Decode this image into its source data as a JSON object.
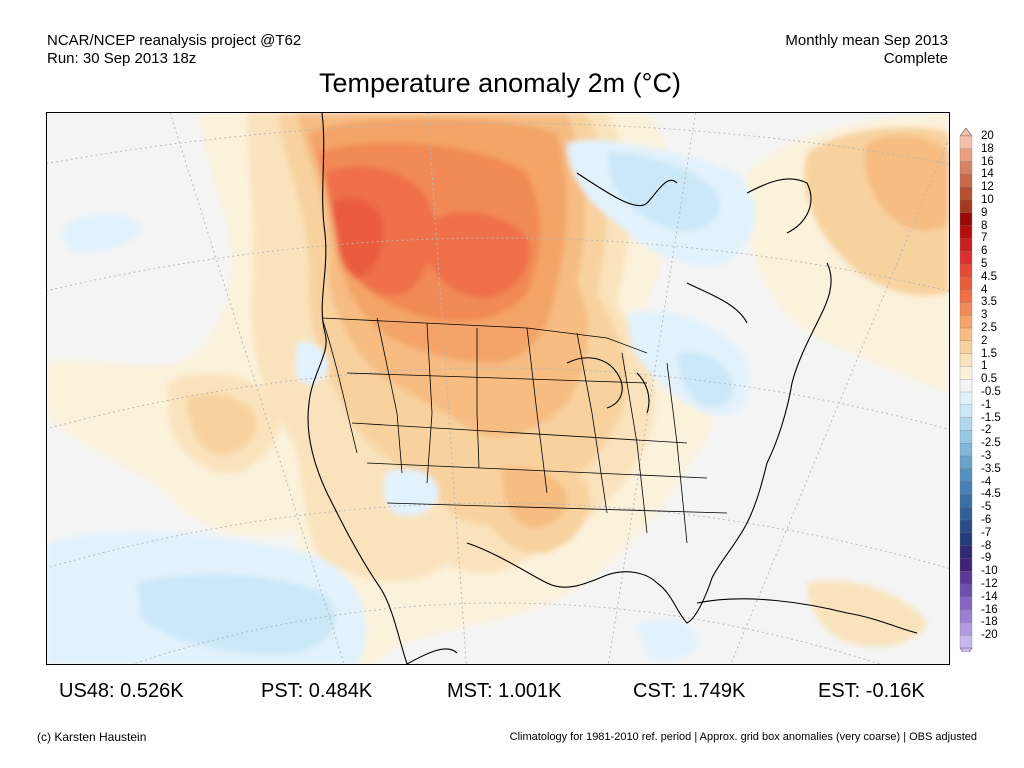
{
  "header": {
    "left_line1": "NCAR/NCEP reanalysis project @T62",
    "left_line2": "Run: 30 Sep 2013 18z",
    "right_line1": "Monthly mean Sep 2013",
    "right_line2": "Complete",
    "title": "Temperature anomaly 2m (°C)"
  },
  "legend": {
    "labels": [
      "20",
      "18",
      "16",
      "14",
      "12",
      "10",
      "9",
      "8",
      "7",
      "6",
      "5",
      "4.5",
      "4",
      "3.5",
      "3",
      "2.5",
      "2",
      "1.5",
      "1",
      "0.5",
      "-0.5",
      "-1",
      "-1.5",
      "-2",
      "-2.5",
      "-3",
      "-3.5",
      "-4",
      "-4.5",
      "-5",
      "-6",
      "-7",
      "-8",
      "-9",
      "-10",
      "-12",
      "-14",
      "-16",
      "-18",
      "-20"
    ],
    "colors": [
      "#f5c0a8",
      "#e8a080",
      "#d98262",
      "#c86848",
      "#b65030",
      "#a53a20",
      "#9a0a0a",
      "#b40f0f",
      "#ca1f1f",
      "#dc3030",
      "#e44a34",
      "#ea5c3c",
      "#ef7048",
      "#f18a56",
      "#f4a468",
      "#f6bc82",
      "#f8d29e",
      "#f9e3bc",
      "#fbf2dc",
      "#f4f4f4",
      "#e2f2fd",
      "#cbe7f8",
      "#b0d8ef",
      "#98c8e4",
      "#80b6d8",
      "#6aa2cb",
      "#5690bf",
      "#4880b3",
      "#3c6fa6",
      "#335e9a",
      "#2c4d8c",
      "#263d7d",
      "#302a72",
      "#402478",
      "#5a3a94",
      "#6e50ac",
      "#8466c0",
      "#9a80d0",
      "#b29ae0",
      "#c8b6ee"
    ]
  },
  "stats": [
    {
      "label": "US48: 0.526K"
    },
    {
      "label": "PST: 0.484K"
    },
    {
      "label": "MST: 1.001K"
    },
    {
      "label": "CST: 1.749K"
    },
    {
      "label": "EST: -0.16K"
    }
  ],
  "footer": {
    "left": "(c) Karsten Haustein",
    "right": "Climatology for 1981-2010 ref. period | Approx. grid box anomalies (very coarse) | OBS adjusted"
  }
}
